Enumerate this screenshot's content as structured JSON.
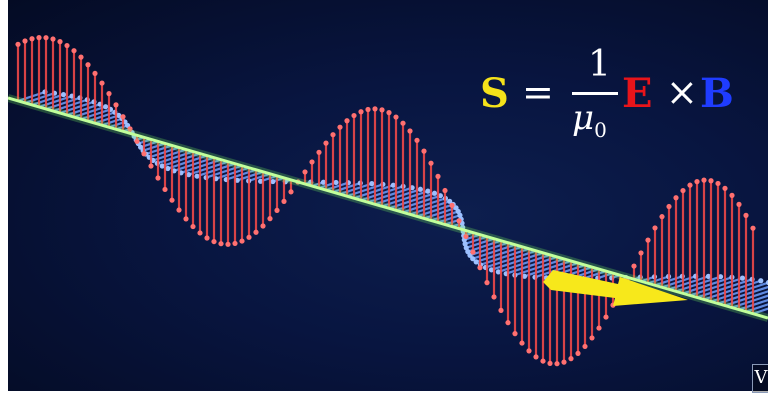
{
  "formula": {
    "poynting_symbol": "S",
    "equals": "=",
    "numerator": "1",
    "denominator_symbol": "μ",
    "denominator_subscript": "0",
    "electric_symbol": "E",
    "cross": "×",
    "magnetic_symbol": "B"
  },
  "watermark": {
    "letter": "V"
  },
  "colors": {
    "poynting": "#f5e21a",
    "electric_field": "#e8141a",
    "magnetic_field": "#1f3cff",
    "propagation_axis": "#c8ff9a"
  },
  "icons": [
    "direction-arrow"
  ]
}
